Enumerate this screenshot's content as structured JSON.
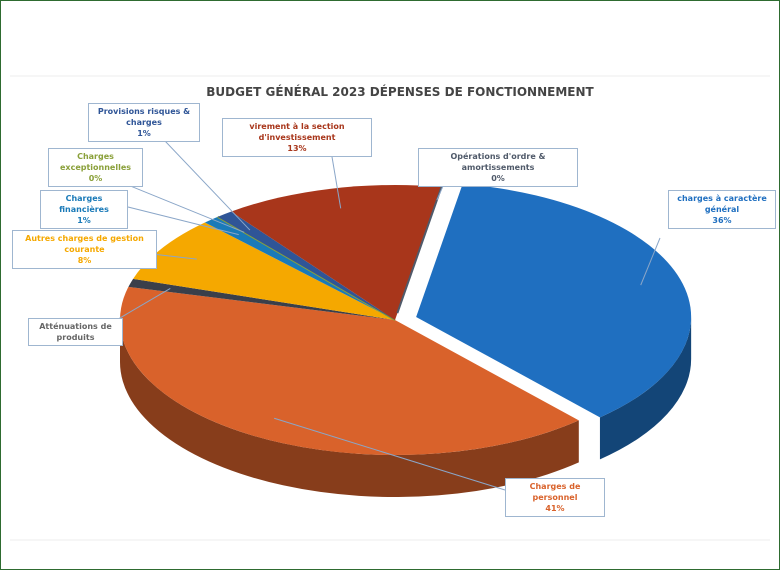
{
  "chart_data": {
    "type": "pie",
    "title": "BUDGET GÉNÉRAL 2023 DÉPENSES DE FONCTIONNEMENT",
    "categories": [
      "charges à caractère général",
      "Charges de personnel",
      "Atténuations de produits",
      "Autres charges de gestion courante",
      "Charges financières",
      "Charges exceptionnelles",
      "Provisions risques & charges",
      "virement à la section d'investissement",
      "Opérations d'ordre & amortissements"
    ],
    "values": [
      36,
      41,
      1,
      8,
      1,
      0,
      1,
      13,
      0
    ],
    "value_labels": [
      "36%",
      "41%",
      null,
      "8%",
      "1%",
      "0%",
      "1%",
      "13%",
      "0%"
    ],
    "colors": [
      "#1f6fc0",
      "#d9622b",
      "#3a3f4a",
      "#f5a800",
      "#1a7ab8",
      "#8aa03a",
      "#2f5597",
      "#a8361b",
      "#505a6a"
    ]
  }
}
